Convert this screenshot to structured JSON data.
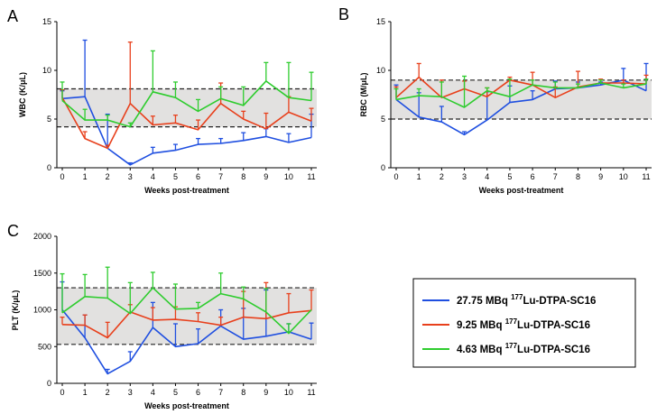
{
  "legend": {
    "entries": [
      {
        "dose": "27.75 MBq",
        "isotope_mass": "177",
        "label_rest": "Lu-DTPA-SC16",
        "color": "#1f4fe0"
      },
      {
        "dose": "9.25 MBq",
        "isotope_mass": "177",
        "label_rest": "Lu-DTPA-SC16",
        "color": "#e8401c"
      },
      {
        "dose": "4.63 MBq",
        "isotope_mass": "177",
        "label_rest": "Lu-DTPA-SC16",
        "color": "#2ecc2e"
      }
    ]
  },
  "chart_data": [
    {
      "panel": "A",
      "type": "line",
      "title": "",
      "xlabel": "Weeks post-treatment",
      "ylabel": "WBC (K/μL)",
      "xlim": [
        0,
        11
      ],
      "ylim": [
        0,
        15
      ],
      "x_ticks": [
        0,
        1,
        2,
        3,
        4,
        5,
        6,
        7,
        8,
        9,
        10,
        11
      ],
      "y_ticks": [
        0,
        5,
        10,
        15
      ],
      "normal_range": [
        4.2,
        8.1
      ],
      "x": [
        0,
        1,
        2,
        3,
        4,
        5,
        6,
        7,
        8,
        9,
        10,
        11
      ],
      "series": [
        {
          "name": "27.75 MBq 177Lu-DTPA-SC16",
          "values": [
            7.1,
            7.3,
            2.0,
            0.3,
            1.5,
            1.8,
            2.4,
            2.5,
            2.8,
            3.2,
            2.6,
            3.1
          ],
          "errors": [
            0.8,
            5.8,
            3.5,
            0.2,
            0.6,
            0.6,
            0.6,
            0.5,
            0.8,
            0.8,
            0.9,
            2.4
          ]
        },
        {
          "name": "9.25 MBq 177Lu-DTPA-SC16",
          "values": [
            7.2,
            3.0,
            2.0,
            6.6,
            4.4,
            4.6,
            3.9,
            6.6,
            5.0,
            4.0,
            5.7,
            4.8
          ],
          "errors": [
            0.8,
            0.7,
            0.3,
            6.3,
            0.9,
            0.8,
            1.0,
            2.1,
            0.8,
            1.6,
            1.6,
            1.3
          ]
        },
        {
          "name": "4.63 MBq 177Lu-DTPA-SC16",
          "values": [
            6.9,
            4.9,
            4.9,
            4.2,
            7.8,
            7.2,
            5.8,
            7.1,
            6.4,
            8.9,
            7.2,
            6.9
          ],
          "errors": [
            1.9,
            1.1,
            0.5,
            0.4,
            4.2,
            1.6,
            1.2,
            1.2,
            1.9,
            1.9,
            3.6,
            2.9
          ]
        }
      ]
    },
    {
      "panel": "B",
      "type": "line",
      "title": "",
      "xlabel": "Weeks post-treatment",
      "ylabel": "RBC (M/μL)",
      "xlim": [
        0,
        11
      ],
      "ylim": [
        0,
        15
      ],
      "x_ticks": [
        0,
        1,
        2,
        3,
        4,
        5,
        6,
        7,
        8,
        9,
        10,
        11
      ],
      "y_ticks": [
        0,
        5,
        10,
        15
      ],
      "normal_range": [
        5.0,
        9.0
      ],
      "x": [
        0,
        1,
        2,
        3,
        4,
        5,
        6,
        7,
        8,
        9,
        10,
        11
      ],
      "series": [
        {
          "name": "27.75 MBq 177Lu-DTPA-SC16",
          "values": [
            7.0,
            5.2,
            4.7,
            3.4,
            4.9,
            6.7,
            7.0,
            8.1,
            8.2,
            8.5,
            9.0,
            7.9
          ],
          "errors": [
            1.5,
            2.5,
            1.6,
            0.3,
            2.9,
            1.7,
            0.9,
            0.8,
            0.6,
            0.3,
            1.2,
            2.8
          ]
        },
        {
          "name": "9.25 MBq 177Lu-DTPA-SC16",
          "values": [
            7.2,
            9.3,
            7.2,
            8.1,
            7.3,
            9.0,
            8.5,
            7.2,
            8.3,
            8.7,
            8.7,
            8.6
          ],
          "errors": [
            1.1,
            1.4,
            1.8,
            0.8,
            0.9,
            0.3,
            1.3,
            1.1,
            1.6,
            0.4,
            0.3,
            0.9
          ]
        },
        {
          "name": "4.63 MBq 177Lu-DTPA-SC16",
          "values": [
            7.0,
            7.4,
            7.3,
            6.2,
            7.9,
            7.3,
            8.5,
            8.2,
            8.2,
            8.7,
            8.2,
            8.6
          ],
          "errors": [
            1.1,
            0.7,
            1.5,
            3.2,
            0.3,
            1.8,
            0.5,
            0.6,
            0.4,
            0.3,
            0.4,
            0.5
          ]
        }
      ]
    },
    {
      "panel": "C",
      "type": "line",
      "title": "",
      "xlabel": "Weeks post-treatment",
      "ylabel": "PLT (K/μL)",
      "xlim": [
        0,
        11
      ],
      "ylim": [
        0,
        2000
      ],
      "x_ticks": [
        0,
        1,
        2,
        3,
        4,
        5,
        6,
        7,
        8,
        9,
        10,
        11
      ],
      "y_ticks": [
        0,
        500,
        1000,
        1500,
        2000
      ],
      "normal_range": [
        530,
        1300
      ],
      "x": [
        0,
        1,
        2,
        3,
        4,
        5,
        6,
        7,
        8,
        9,
        10,
        11
      ],
      "series": [
        {
          "name": "27.75 MBq 177Lu-DTPA-SC16",
          "values": [
            1000,
            620,
            130,
            300,
            760,
            500,
            540,
            780,
            600,
            640,
            700,
            600
          ],
          "errors": [
            380,
            310,
            60,
            130,
            340,
            310,
            200,
            220,
            420,
            630,
            110,
            220
          ]
        },
        {
          "name": "9.25 MBq 177Lu-DTPA-SC16",
          "values": [
            800,
            790,
            620,
            970,
            860,
            870,
            840,
            790,
            900,
            880,
            960,
            990
          ],
          "errors": [
            100,
            140,
            210,
            100,
            170,
            170,
            120,
            110,
            350,
            490,
            260,
            280
          ]
        },
        {
          "name": "4.63 MBq 177Lu-DTPA-SC16",
          "values": [
            960,
            1180,
            1160,
            950,
            1300,
            1010,
            1020,
            1220,
            1150,
            970,
            680,
            1000
          ],
          "errors": [
            530,
            300,
            420,
            420,
            210,
            340,
            80,
            280,
            160,
            320,
            130,
            0
          ]
        }
      ]
    }
  ]
}
